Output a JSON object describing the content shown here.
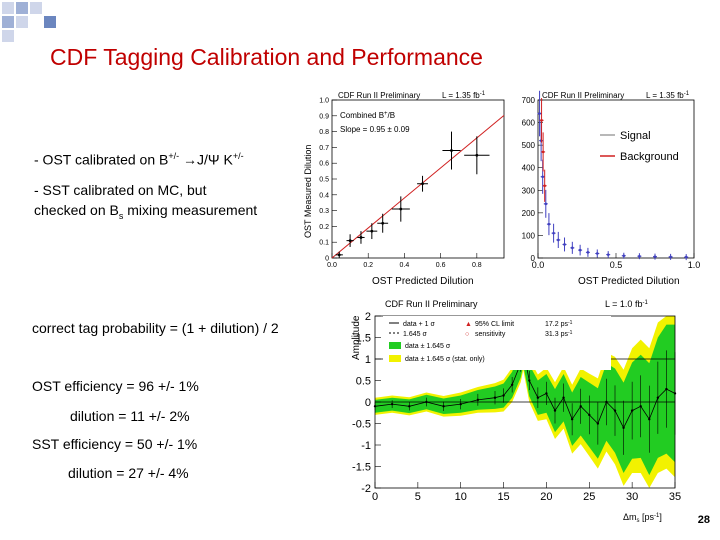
{
  "colors": {
    "title": "#c00000",
    "deco_square_light": "#cfd6ea",
    "deco_square_mid": "#9fb0d6",
    "deco_square_dark": "#6b86bf",
    "fit_line": "#d02020",
    "green_band": "#22cc22",
    "yellow_band": "#f2f200",
    "signal": "#4040c0",
    "background": "#d02020"
  },
  "slide": {
    "title": "CDF Tagging Calibration and Performance",
    "bullets": {
      "ost_prefix": "- OST calibrated on B",
      "ost_sup1": "+/-",
      "ost_mid": " →J/Ψ K",
      "ost_sup2": "+/-",
      "sst_line1": "- SST calibrated on MC, but",
      "sst_line2_prefix": "checked on B",
      "sst_line2_sub": "s",
      "sst_line2_suffix": " mixing measurement"
    },
    "formula": "correct tag probability = (1 + dilution) / 2",
    "ost_eff": "OST efficiency = 96 +/- 1%",
    "ost_dil": "dilution = 11 +/-  2%",
    "sst_eff": "SST efficiency = 50 +/- 1%",
    "sst_dil": "dilution = 27 +/- 4%",
    "page_number": "28"
  },
  "plot1": {
    "header_left": "CDF Run II Preliminary",
    "header_right": "L = 1.35 fb",
    "header_right_sup": "-1",
    "legend_line1": "Combined B",
    "legend_line1_sup": "+",
    "legend_line1_end": "/B",
    "legend_slope": "Slope = 0.95 ± 0.09",
    "ylabel": "OST Measured Dilution",
    "xlabel": "OST Predicted Dilution"
  },
  "plot2": {
    "header_left": "CDF Run II Preliminary",
    "header_right": "L = 1.35 fb",
    "header_right_sup": "-1",
    "legend_signal": "Signal",
    "legend_background": "Background",
    "xlabel": "OST Predicted Dilution"
  },
  "plot3": {
    "header_left": "CDF Run II Preliminary",
    "header_right": "L = 1.0 fb",
    "header_right_sup": "-1",
    "ylabel": "Amplitude",
    "xlabel": "Δm",
    "xlabel_sub": "s",
    "xlabel_unit": " [ps",
    "xlabel_unit_sup": "-1",
    "xlabel_end": "]",
    "leg_data": "data + 1 σ",
    "leg_data2": "1.645 σ",
    "leg_green": "data ± 1.645 σ",
    "leg_yellow": "data ± 1.645 σ (stat. only)",
    "leg_limit": "95% CL limit",
    "leg_sens": "sensitivity",
    "leg_limit_val": "17.2 ps",
    "leg_sens_val": "31.3 ps",
    "leg_val_sup": "-1"
  },
  "chart_data": [
    {
      "type": "scatter",
      "title": "CDF Run II Preliminary",
      "xlabel": "OST Predicted Dilution",
      "ylabel": "OST Measured Dilution",
      "xlim": [
        0,
        0.95
      ],
      "ylim": [
        0,
        1.0
      ],
      "x_ticks": [
        "0.0",
        "0.2",
        "0.4",
        "0.6",
        "0.8"
      ],
      "y_ticks": [
        "0",
        "0.1",
        "0.2",
        "0.3",
        "0.4",
        "0.5",
        "0.6",
        "0.7",
        "0.8",
        "0.9",
        "1.0"
      ],
      "x": [
        0.04,
        0.1,
        0.16,
        0.22,
        0.28,
        0.38,
        0.5,
        0.66,
        0.8
      ],
      "values": [
        0.02,
        0.11,
        0.13,
        0.17,
        0.22,
        0.31,
        0.47,
        0.68,
        0.65
      ],
      "yerr": [
        0.02,
        0.04,
        0.04,
        0.05,
        0.06,
        0.08,
        0.05,
        0.12,
        0.12
      ],
      "xerr": [
        0.02,
        0.02,
        0.02,
        0.03,
        0.03,
        0.05,
        0.03,
        0.05,
        0.07
      ],
      "fit_slope": 0.95,
      "grid": false
    },
    {
      "type": "scatter",
      "title": "CDF Run II Preliminary",
      "xlabel": "OST Predicted Dilution",
      "xlim": [
        0,
        1.0
      ],
      "ylim": [
        0,
        700
      ],
      "x_ticks": [
        "0.0",
        "0.5",
        "1.0"
      ],
      "y_ticks": [
        "0",
        "100",
        "200",
        "300",
        "400",
        "500",
        "600",
        "700"
      ],
      "series": [
        {
          "name": "Signal",
          "x": [
            0.01,
            0.02,
            0.03,
            0.05,
            0.07,
            0.1,
            0.13,
            0.17,
            0.22,
            0.27,
            0.32,
            0.38,
            0.45,
            0.55,
            0.65,
            0.75,
            0.85,
            0.95
          ],
          "values": [
            640,
            520,
            360,
            240,
            150,
            110,
            80,
            60,
            45,
            35,
            25,
            20,
            15,
            10,
            8,
            6,
            5,
            4
          ]
        },
        {
          "name": "Background",
          "x": [
            0.01,
            0.02,
            0.03
          ],
          "values": [
            610,
            470,
            320
          ]
        }
      ],
      "legend": "top-right",
      "grid": false
    },
    {
      "type": "line",
      "title": "CDF Run II Preliminary",
      "xlabel": "Δms [ps-1]",
      "ylabel": "Amplitude",
      "xlim": [
        0,
        35
      ],
      "ylim": [
        -2,
        2
      ],
      "x_ticks": [
        "0",
        "5",
        "10",
        "15",
        "20",
        "25",
        "30",
        "35"
      ],
      "y_ticks": [
        "2",
        "1.5",
        "1",
        "0.5",
        "0",
        "-0.5",
        "-1",
        "-1.5",
        "-2"
      ],
      "x": [
        0,
        2,
        4,
        6,
        8,
        10,
        12,
        14,
        15,
        16,
        17,
        17.3,
        18,
        19,
        20,
        21,
        22,
        23,
        24,
        25,
        26,
        27,
        28,
        29,
        30,
        31,
        32,
        33,
        34,
        35
      ],
      "values": [
        -0.1,
        -0.05,
        -0.1,
        0,
        -0.1,
        -0.05,
        0.05,
        0.1,
        0.15,
        0.4,
        0.9,
        1.2,
        0.5,
        0.1,
        0.2,
        -0.2,
        0.1,
        -0.4,
        -0.1,
        -0.3,
        -0.5,
        0.0,
        -0.2,
        -0.6,
        -0.2,
        -0.1,
        -0.4,
        0.1,
        0.3,
        0.2
      ],
      "band_half_green": [
        0.15,
        0.15,
        0.16,
        0.17,
        0.18,
        0.2,
        0.23,
        0.26,
        0.28,
        0.3,
        0.33,
        0.35,
        0.37,
        0.4,
        0.45,
        0.5,
        0.55,
        0.62,
        0.68,
        0.75,
        0.82,
        0.9,
        0.98,
        1.05,
        1.12,
        1.2,
        1.3,
        1.4,
        1.5,
        1.6
      ],
      "band_half_yellow": [
        0.2,
        0.2,
        0.21,
        0.22,
        0.24,
        0.27,
        0.3,
        0.34,
        0.37,
        0.4,
        0.44,
        0.46,
        0.5,
        0.54,
        0.6,
        0.66,
        0.72,
        0.8,
        0.88,
        0.96,
        1.05,
        1.15,
        1.25,
        1.35,
        1.45,
        1.55,
        1.65,
        1.75,
        1.85,
        1.95
      ],
      "reference_lines": [
        1,
        0
      ],
      "grid": false
    }
  ]
}
